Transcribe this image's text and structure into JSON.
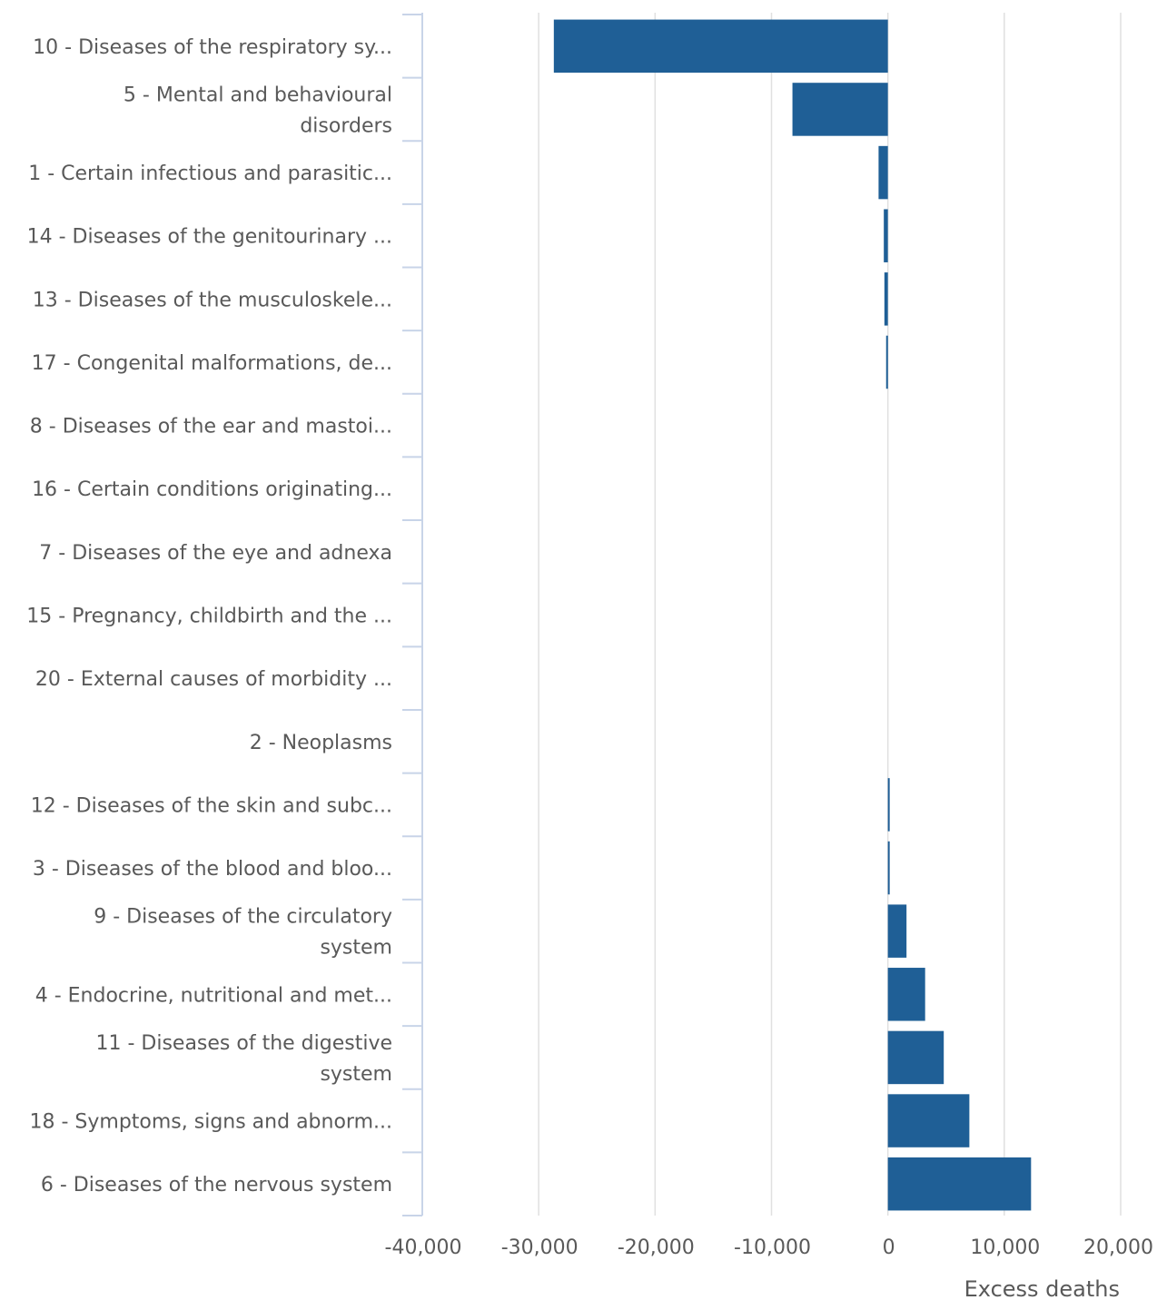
{
  "chart_data": {
    "type": "bar",
    "orientation": "horizontal",
    "bar_color": "#1f5f96",
    "xlabel": "Excess deaths",
    "xlim": [
      -40000,
      20000
    ],
    "xticks": [
      -40000,
      -30000,
      -20000,
      -10000,
      0,
      10000,
      20000
    ],
    "xtick_labels": [
      "-40,000",
      "-30,000",
      "-20,000",
      "-10,000",
      "0",
      "10,000",
      "20,000"
    ],
    "grid": true,
    "categories": [
      [
        "10 - Diseases of the respiratory sy..."
      ],
      [
        "5 - Mental and behavioural",
        "disorders"
      ],
      [
        "1 - Certain infectious and parasitic..."
      ],
      [
        "14 - Diseases of the genitourinary ..."
      ],
      [
        "13 - Diseases of the musculoskele..."
      ],
      [
        "17 - Congenital malformations, de..."
      ],
      [
        "8 - Diseases of the ear and mastoi..."
      ],
      [
        "16 - Certain conditions originating..."
      ],
      [
        "7 - Diseases of the eye and adnexa"
      ],
      [
        "15 - Pregnancy, childbirth and the ..."
      ],
      [
        "20 - External causes of morbidity ..."
      ],
      [
        "2 - Neoplasms"
      ],
      [
        "12 - Diseases of the skin and subc..."
      ],
      [
        "3 - Diseases of the blood and bloo..."
      ],
      [
        "9 - Diseases of the circulatory",
        "system"
      ],
      [
        "4 - Endocrine, nutritional and met..."
      ],
      [
        "11 - Diseases of the digestive",
        "system"
      ],
      [
        "18 - Symptoms, signs and abnorm..."
      ],
      [
        "6 - Diseases of the nervous system"
      ]
    ],
    "values": [
      -28700,
      -8200,
      -800,
      -350,
      -300,
      -150,
      0,
      0,
      0,
      0,
      0,
      0,
      150,
      150,
      1600,
      3200,
      4800,
      7000,
      12300
    ]
  }
}
